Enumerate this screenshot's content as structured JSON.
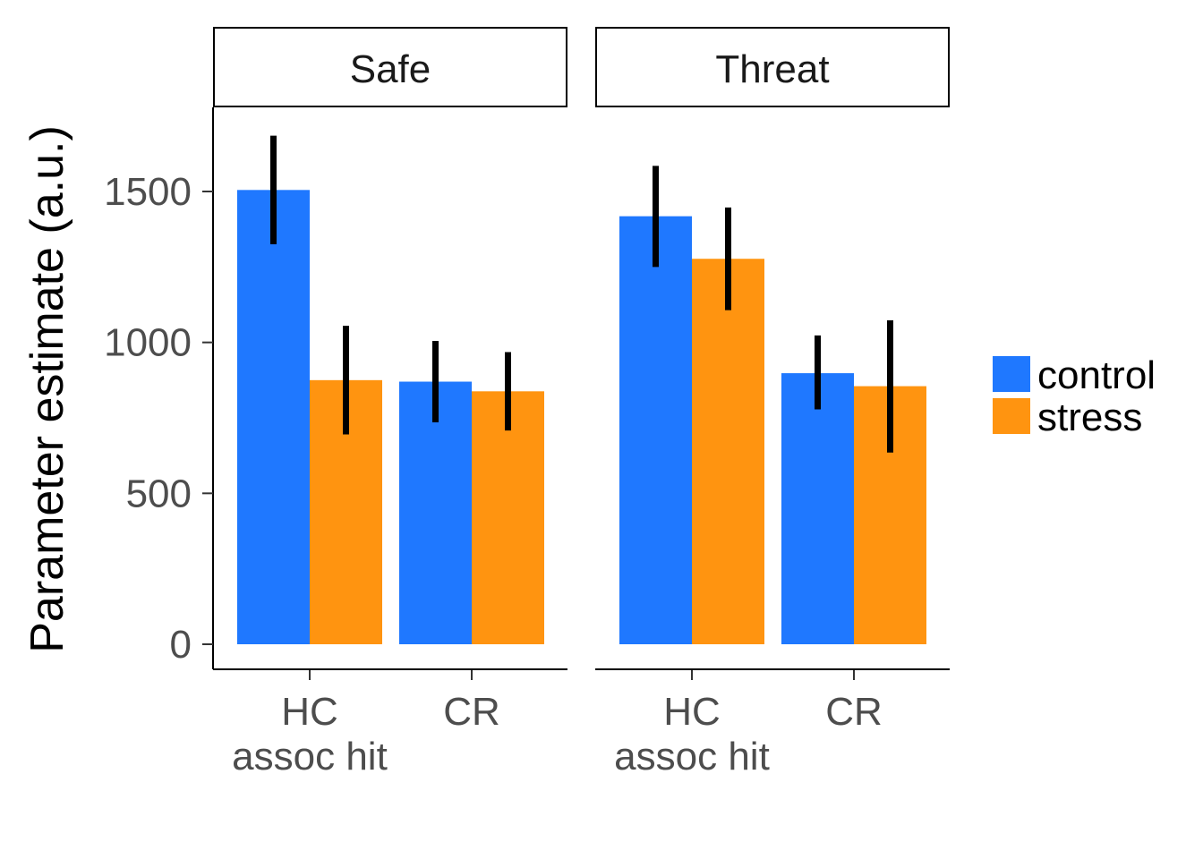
{
  "chart_data": {
    "type": "bar",
    "ylabel": "Parameter estimate (a.u.)",
    "ylim": [
      0,
      1780
    ],
    "yticks": [
      0,
      500,
      1000,
      1500
    ],
    "categories": [
      "HC\nassoc hit",
      "CR"
    ],
    "panels": [
      {
        "title": "Safe",
        "series": [
          {
            "name": "control",
            "values": [
              1505,
              870
            ],
            "error_low": [
              1325,
              735
            ],
            "error_high": [
              1685,
              1005
            ]
          },
          {
            "name": "stress",
            "values": [
              875,
              838
            ],
            "error_low": [
              695,
              708
            ],
            "error_high": [
              1055,
              968
            ]
          }
        ]
      },
      {
        "title": "Threat",
        "series": [
          {
            "name": "control",
            "values": [
              1418,
              898
            ],
            "error_low": [
              1250,
              778
            ],
            "error_high": [
              1585,
              1023
            ]
          },
          {
            "name": "stress",
            "values": [
              1277,
              855
            ],
            "error_low": [
              1107,
              635
            ],
            "error_high": [
              1447,
              1073
            ]
          }
        ]
      }
    ],
    "legend": {
      "position": "right",
      "entries": [
        {
          "name": "control",
          "color": "#1f78ff"
        },
        {
          "name": "stress",
          "color": "#ff9410"
        }
      ]
    },
    "grid": false
  }
}
